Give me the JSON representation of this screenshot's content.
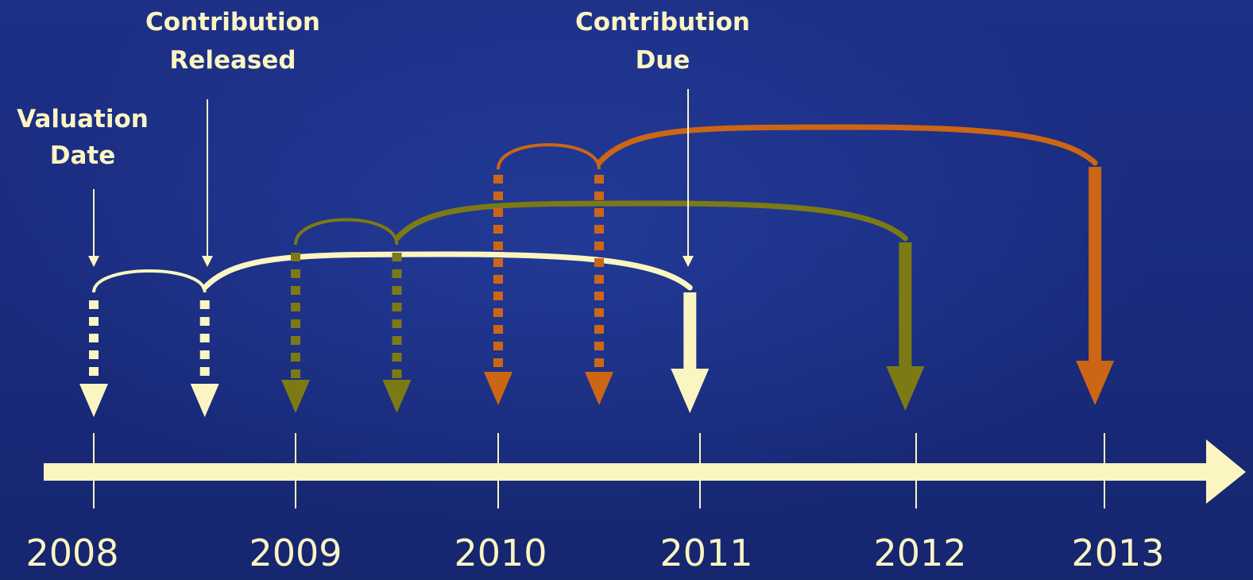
{
  "labels": {
    "valuation_date": [
      "Valuation",
      "Date"
    ],
    "contribution_released": [
      "Contribution",
      "Released"
    ],
    "contribution_due": [
      "Contribution",
      "Due"
    ]
  },
  "years": [
    "2008",
    "2009",
    "2010",
    "2011",
    "2012",
    "2013"
  ],
  "colors": {
    "background": "#1a2b7d",
    "cream": "#fbf5c2",
    "olive": "#7c7a14",
    "orange": "#cc6614"
  },
  "cycles": [
    {
      "name": "cycle-1",
      "color": "cream",
      "valuation_year": 2008.0,
      "released_year": 2008.55,
      "due_year": 2010.95
    },
    {
      "name": "cycle-2",
      "color": "olive",
      "valuation_year": 2009.0,
      "released_year": 2009.5,
      "due_year": 2011.95
    },
    {
      "name": "cycle-3",
      "color": "orange",
      "valuation_year": 2010.0,
      "released_year": 2010.5,
      "due_year": 2012.95
    }
  ]
}
